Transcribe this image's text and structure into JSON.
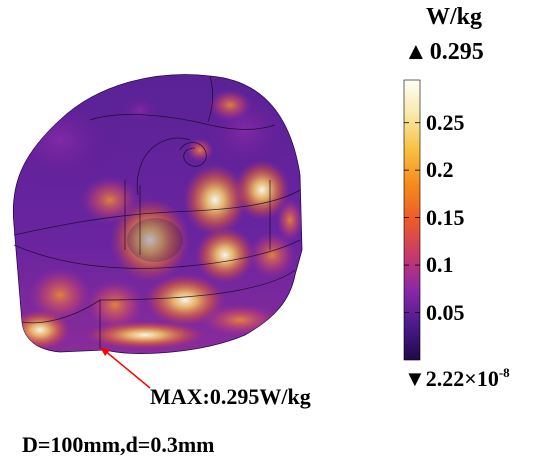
{
  "legend": {
    "unit": "W/kg",
    "max_value": "0.295",
    "min_value": "2.22×10",
    "min_exponent": "-8",
    "ticks": [
      {
        "label": "0.25",
        "value": 0.25
      },
      {
        "label": "0.2",
        "value": 0.2
      },
      {
        "label": "0.15",
        "value": 0.15
      },
      {
        "label": "0.1",
        "value": 0.1
      },
      {
        "label": "0.05",
        "value": 0.05
      }
    ],
    "range": [
      0.0,
      0.295
    ],
    "colormap": [
      "#1e0a4a",
      "#4b1a8a",
      "#8a28a8",
      "#c83a6a",
      "#ee5a2a",
      "#f68a1a",
      "#f8c040",
      "#f8e8a8",
      "#fffff8"
    ]
  },
  "annotation": {
    "max_label": "MAX:0.295W/kg",
    "arrow_color": "#ff0000"
  },
  "caption": "D=100mm,d=0.3mm"
}
